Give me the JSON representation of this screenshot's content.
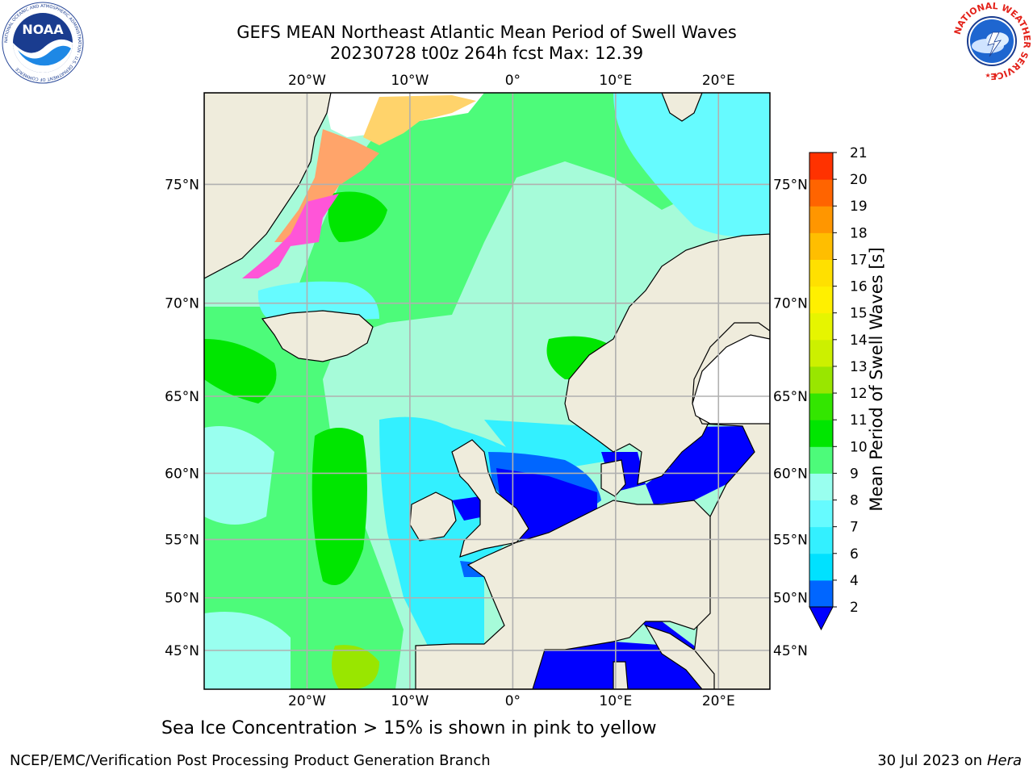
{
  "header": {
    "title_line1": "GEFS MEAN Northeast Atlantic Mean Period of Swell Waves",
    "title_line2": "20230728 t00z 264h fcst   Max: 12.39"
  },
  "logos": {
    "left": {
      "name": "noaa-logo",
      "text": "NOAA",
      "ring_text": "NATIONAL OCEANIC AND ATMOSPHERIC ADMINISTRATION · U.S. DEPARTMENT OF COMMERCE"
    },
    "right": {
      "name": "nws-logo",
      "ring_text": "NATIONAL WEATHER SERVICE"
    }
  },
  "map": {
    "projection": "Mercator",
    "lon_range": [
      -30,
      25
    ],
    "lat_range": [
      41,
      78
    ],
    "lon_ticks": [
      "20°W",
      "10°W",
      "0°",
      "10°E",
      "20°E"
    ],
    "lat_ticks": [
      "75°N",
      "70°N",
      "65°N",
      "60°N",
      "55°N",
      "50°N",
      "45°N"
    ],
    "grid": true,
    "land_color": "#efecdc",
    "ocean_base_color": "#a6fbd9"
  },
  "colorbar": {
    "label": "Mean Period of Swell Waves [s]",
    "ticks": [
      "2",
      "4",
      "6",
      "7",
      "8",
      "9",
      "10",
      "11",
      "12",
      "13",
      "14",
      "15",
      "16",
      "17",
      "18",
      "19",
      "20",
      "21"
    ],
    "colors": [
      "#0066ff",
      "#00e1ff",
      "#33f0ff",
      "#66fbff",
      "#99ffef",
      "#4dfb7a",
      "#00e600",
      "#33e600",
      "#99e600",
      "#ccf000",
      "#e6f500",
      "#fff000",
      "#ffe000",
      "#ffbe00",
      "#ff9600",
      "#ff6400",
      "#ff3200"
    ],
    "extend_color": "#0000ff",
    "placement": "right"
  },
  "caption": "Sea Ice Concentration > 15% is shown in pink to yellow",
  "footer": {
    "left": "NCEP/EMC/Verification Post Processing Product Generation Branch",
    "right_date": "30 Jul 2023 on ",
    "right_host": "Hera"
  }
}
